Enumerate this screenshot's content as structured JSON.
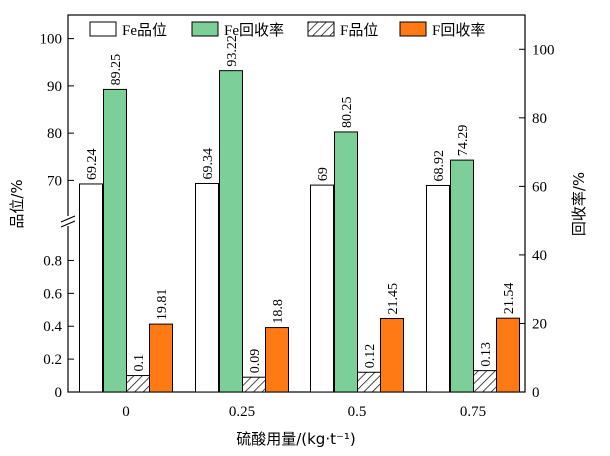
{
  "chart_data": {
    "type": "bar",
    "categories": [
      "0",
      "0.25",
      "0.5",
      "0.75"
    ],
    "xlabel": "硫酸用量/(kg·t⁻¹)",
    "ylabel_left": "品位/%",
    "ylabel_right": "回收率/%",
    "left_axis": {
      "broken": true,
      "lower_range": [
        0,
        0.9
      ],
      "upper_range": [
        65,
        105
      ],
      "lower_ticks": [
        "0",
        "0.2",
        "0.4",
        "0.6",
        "0.8"
      ],
      "upper_ticks": [
        "70",
        "80",
        "90",
        "100"
      ]
    },
    "right_axis": {
      "range": [
        0,
        110
      ],
      "ticks": [
        "0",
        "20",
        "40",
        "60",
        "80",
        "100"
      ]
    },
    "legend_position": "top",
    "series": [
      {
        "name": "Fe品位",
        "axis": "left",
        "pattern": "white",
        "values": [
          69.24,
          69.34,
          69,
          68.92
        ],
        "labels": [
          "69.24",
          "69.34",
          "69",
          "68.92"
        ]
      },
      {
        "name": "Fe回收率",
        "axis": "left",
        "pattern": "green",
        "values": [
          89.25,
          93.22,
          80.25,
          74.29
        ],
        "labels": [
          "89.25",
          "93.22",
          "80.25",
          "74.29"
        ]
      },
      {
        "name": "F品位",
        "axis": "left",
        "pattern": "hatch",
        "values": [
          0.1,
          0.09,
          0.12,
          0.13
        ],
        "labels": [
          "0.1",
          "0.09",
          "0.12",
          "0.13"
        ]
      },
      {
        "name": "F回收率",
        "axis": "right",
        "pattern": "orange",
        "values": [
          19.81,
          18.8,
          21.45,
          21.54
        ],
        "labels": [
          "19.81",
          "18.8",
          "21.45",
          "21.54"
        ]
      }
    ],
    "colors": {
      "green": "#7dcf99",
      "orange": "#ff7a14",
      "white": "#ffffff",
      "stroke": "#000000"
    }
  }
}
